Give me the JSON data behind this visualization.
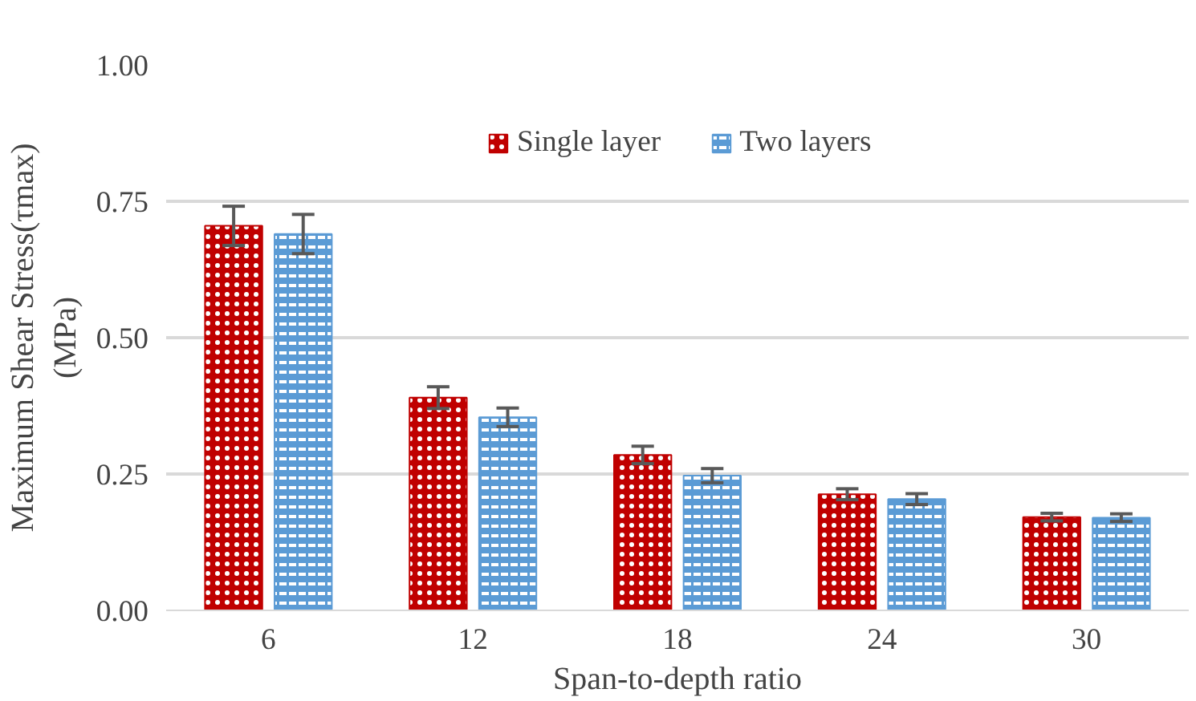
{
  "chart_data": {
    "type": "bar",
    "xlabel": "Span-to-depth ratio",
    "ylabel": "Maximum Shear Stress(τmax)\n(MPa)",
    "categories": [
      "6",
      "12",
      "18",
      "24",
      "30"
    ],
    "series": [
      {
        "name": "Single layer",
        "color": "#c00000",
        "values": [
          0.705,
          0.39,
          0.285,
          0.213,
          0.171
        ],
        "errors": [
          0.036,
          0.02,
          0.016,
          0.01,
          0.007
        ]
      },
      {
        "name": "Two layers",
        "color": "#5b9bd5",
        "values": [
          0.69,
          0.354,
          0.247,
          0.204,
          0.17
        ],
        "errors": [
          0.036,
          0.017,
          0.013,
          0.01,
          0.007
        ]
      }
    ],
    "ylim": [
      0,
      1
    ],
    "yticks": [
      {
        "value": 0,
        "label": "0.00"
      },
      {
        "value": 0.25,
        "label": "0.25"
      },
      {
        "value": 0.5,
        "label": "0.50"
      },
      {
        "value": 0.75,
        "label": "0.75"
      },
      {
        "value": 1,
        "label": "1.00"
      }
    ],
    "grid": "y",
    "legend": "top"
  }
}
